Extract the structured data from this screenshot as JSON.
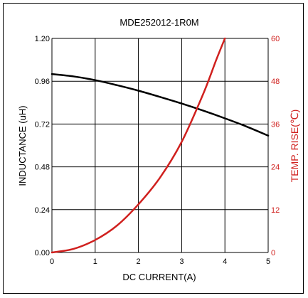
{
  "chart_data": {
    "type": "line",
    "title": "MDE252012-1R0M",
    "xlabel": "DC CURRENT(A)",
    "ylabel": "INDUCTANCE (uH)",
    "y2label": "TEMP. RISE(℃)",
    "xlim": [
      0,
      5
    ],
    "ylim": [
      0,
      1.2
    ],
    "y2lim": [
      0,
      60
    ],
    "x_ticks": [
      "0",
      "1",
      "2",
      "3",
      "4",
      "5"
    ],
    "y_ticks": [
      "0.00",
      "0.24",
      "0.48",
      "0.72",
      "0.96",
      "1.20"
    ],
    "y2_ticks": [
      "0",
      "12",
      "24",
      "36",
      "48",
      "60"
    ],
    "grid": true,
    "series": [
      {
        "axis": "left",
        "color": "#000000",
        "x": [
          0,
          0.5,
          1.0,
          1.5,
          2.0,
          2.5,
          3.0,
          3.5,
          4.0,
          4.5,
          5.0
        ],
        "values": [
          1.0,
          0.987,
          0.966,
          0.938,
          0.907,
          0.872,
          0.835,
          0.795,
          0.752,
          0.706,
          0.655
        ]
      },
      {
        "axis": "right",
        "color": "#d0201e",
        "x": [
          0,
          0.5,
          1.0,
          1.5,
          2.0,
          2.5,
          3.0,
          3.5,
          3.8,
          4.0
        ],
        "values": [
          0,
          1.0,
          3.5,
          7.5,
          13.5,
          21.0,
          31.0,
          44.5,
          54.0,
          60.0
        ]
      }
    ],
    "colors": {
      "left_axis": "#000000",
      "right_axis": "#d0201e"
    }
  }
}
